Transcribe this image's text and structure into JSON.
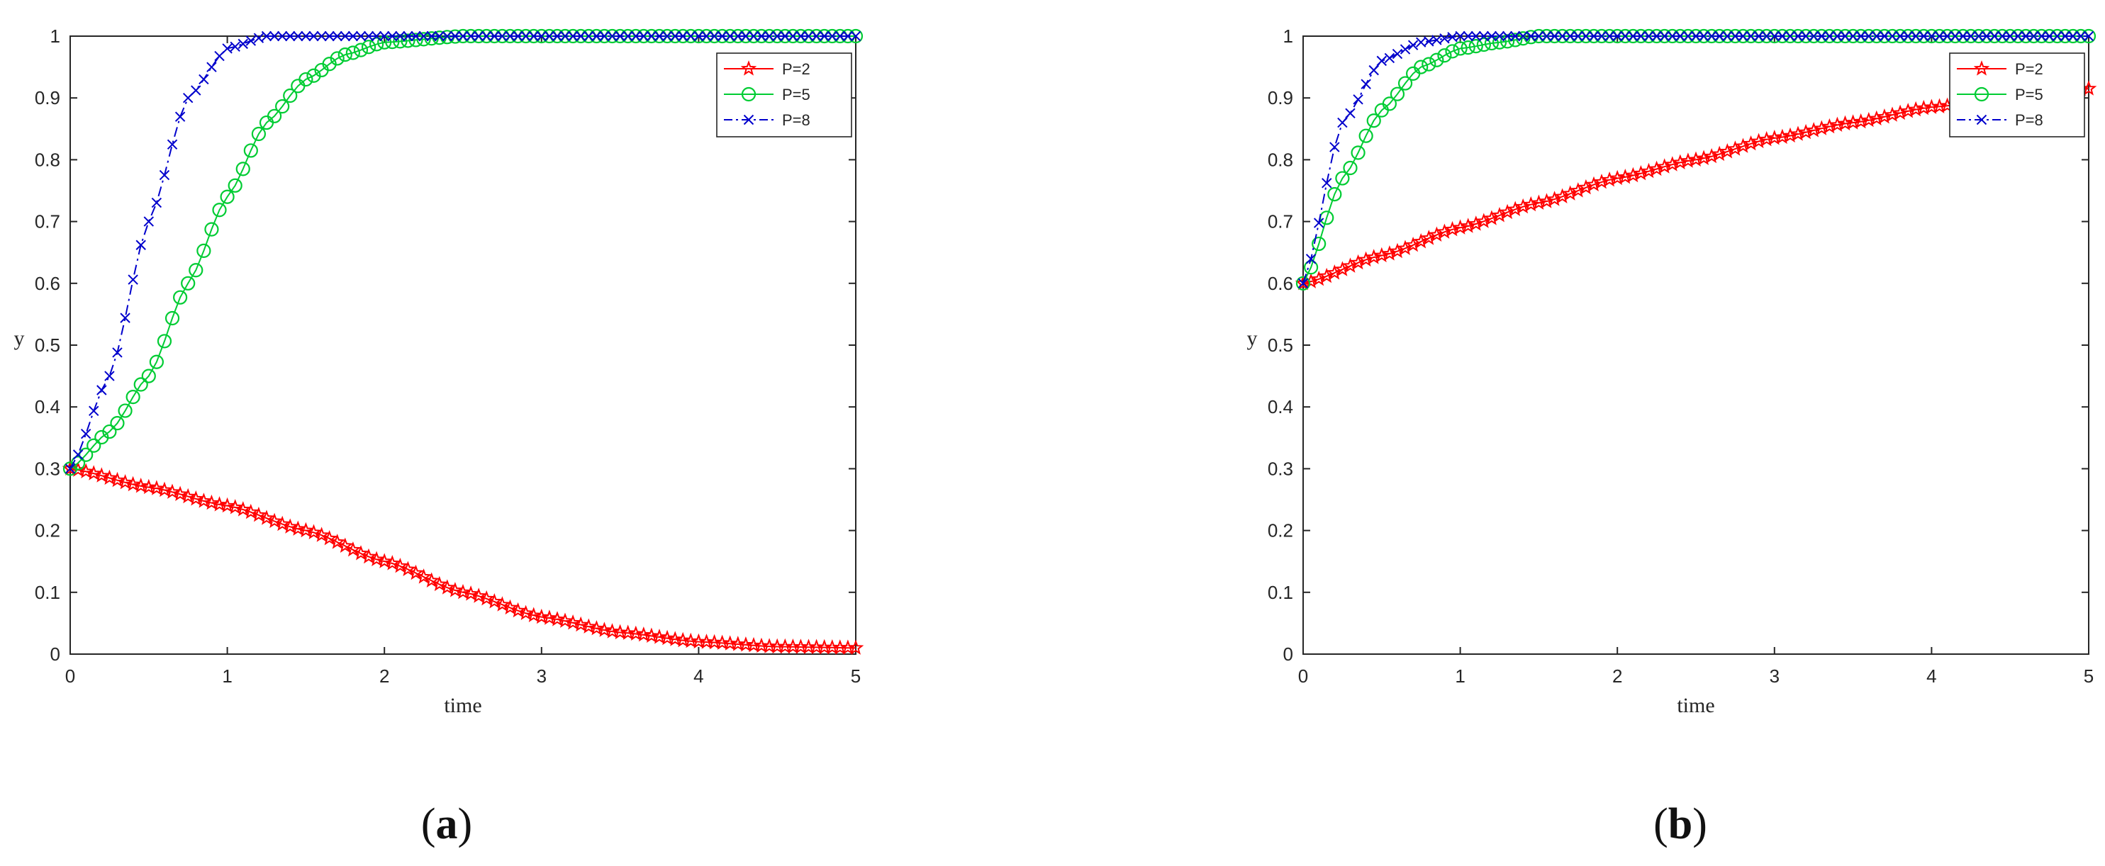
{
  "chart_data": [
    {
      "type": "line",
      "caption": "(a)",
      "caption_open": "(",
      "caption_letter": "a",
      "caption_close": ")",
      "xlabel": "time",
      "ylabel": "y",
      "xlim": [
        0,
        5
      ],
      "ylim": [
        0,
        1
      ],
      "xticks": [
        0,
        1,
        2,
        3,
        4,
        5
      ],
      "yticks": [
        0,
        0.1,
        0.2,
        0.3,
        0.4,
        0.5,
        0.6,
        0.7,
        0.8,
        0.9,
        1
      ],
      "legend_position": "top-right",
      "grid": false,
      "series": [
        {
          "name": "P=2",
          "color": "#ff0000",
          "marker": "star",
          "line_style": "solid",
          "x": [
            0,
            0.5,
            1,
            1.5,
            2,
            2.5,
            3,
            3.5,
            4,
            4.5,
            5
          ],
          "y": [
            0.3,
            0.27,
            0.24,
            0.2,
            0.15,
            0.1,
            0.06,
            0.035,
            0.02,
            0.012,
            0.01
          ]
        },
        {
          "name": "P=5",
          "color": "#00cc33",
          "marker": "circle",
          "line_style": "solid",
          "x": [
            0,
            0.25,
            0.5,
            0.75,
            1,
            1.25,
            1.5,
            1.75,
            2,
            2.5,
            3,
            4,
            5
          ],
          "y": [
            0.3,
            0.36,
            0.45,
            0.6,
            0.74,
            0.86,
            0.93,
            0.97,
            0.99,
            1.0,
            1.0,
            1.0,
            1.0
          ]
        },
        {
          "name": "P=8",
          "color": "#0000cc",
          "marker": "x",
          "line_style": "dashdot",
          "x": [
            0,
            0.25,
            0.5,
            0.75,
            1,
            1.25,
            1.5,
            2,
            3,
            4,
            5
          ],
          "y": [
            0.3,
            0.45,
            0.7,
            0.9,
            0.98,
            1.0,
            1.0,
            1.0,
            1.0,
            1.0,
            1.0
          ]
        }
      ]
    },
    {
      "type": "line",
      "caption": "(b)",
      "caption_open": "(",
      "caption_letter": "b",
      "caption_close": ")",
      "xlabel": "time",
      "ylabel": "y",
      "xlim": [
        0,
        5
      ],
      "ylim": [
        0,
        1
      ],
      "xticks": [
        0,
        1,
        2,
        3,
        4,
        5
      ],
      "yticks": [
        0,
        0.1,
        0.2,
        0.3,
        0.4,
        0.5,
        0.6,
        0.7,
        0.8,
        0.9,
        1
      ],
      "legend_position": "top-right",
      "grid": false,
      "series": [
        {
          "name": "P=2",
          "color": "#ff0000",
          "marker": "star",
          "line_style": "solid",
          "x": [
            0,
            0.5,
            1,
            1.5,
            2,
            2.5,
            3,
            3.5,
            4,
            4.5,
            5
          ],
          "y": [
            0.6,
            0.645,
            0.69,
            0.73,
            0.77,
            0.8,
            0.835,
            0.86,
            0.885,
            0.9,
            0.915
          ]
        },
        {
          "name": "P=5",
          "color": "#00cc33",
          "marker": "circle",
          "line_style": "solid",
          "x": [
            0,
            0.25,
            0.5,
            0.75,
            1,
            1.25,
            1.5,
            2,
            3,
            4,
            5
          ],
          "y": [
            0.6,
            0.77,
            0.88,
            0.95,
            0.98,
            0.99,
            1.0,
            1.0,
            1.0,
            1.0,
            1.0
          ]
        },
        {
          "name": "P=8",
          "color": "#0000cc",
          "marker": "x",
          "line_style": "dashdot",
          "x": [
            0,
            0.25,
            0.5,
            0.75,
            1,
            1.5,
            2,
            3,
            4,
            5
          ],
          "y": [
            0.6,
            0.86,
            0.96,
            0.99,
            1.0,
            1.0,
            1.0,
            1.0,
            1.0,
            1.0
          ]
        }
      ]
    }
  ]
}
